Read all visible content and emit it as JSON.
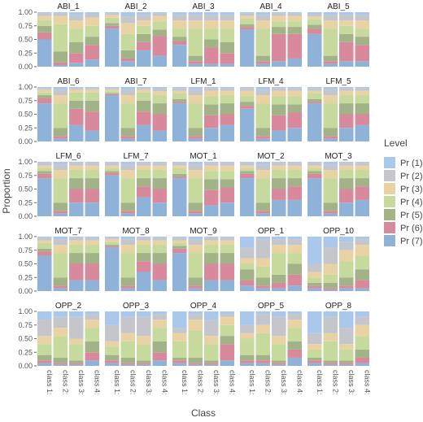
{
  "chart_data": {
    "type": "bar",
    "stacked": true,
    "x_label": "Class",
    "y_label": "Proportion",
    "legend_title": "Level",
    "categories": [
      "class 1:",
      "class 2:",
      "class 3:",
      "class 4:"
    ],
    "series": [
      {
        "name": "Pr (1)",
        "color": "#a9c8ec"
      },
      {
        "name": "Pr (2)",
        "color": "#c4c6cc"
      },
      {
        "name": "Pr (3)",
        "color": "#e9d3a4"
      },
      {
        "name": "Pr (4)",
        "color": "#c5da9c"
      },
      {
        "name": "Pr (5)",
        "color": "#a2b487"
      },
      {
        "name": "Pr (6)",
        "color": "#d9899c"
      },
      {
        "name": "Pr (7)",
        "color": "#8fb2d9"
      }
    ],
    "ylim": [
      0,
      1
    ],
    "yticks": [
      {
        "value": 0,
        "label": "0.00"
      },
      {
        "value": 0.25,
        "label": "0.25"
      },
      {
        "value": 0.5,
        "label": "0.50"
      },
      {
        "value": 0.75,
        "label": "0.75"
      },
      {
        "value": 1,
        "label": "1.00"
      }
    ],
    "panels": [
      {
        "title": "ABI_1",
        "values": [
          [
            0.02,
            0.05,
            0.08,
            0.1,
            0.12,
            0.13,
            0.5
          ],
          [
            0.02,
            0.05,
            0.15,
            0.5,
            0.2,
            0.05,
            0.03
          ],
          [
            0.05,
            0.1,
            0.15,
            0.25,
            0.2,
            0.18,
            0.07
          ],
          [
            0.03,
            0.07,
            0.15,
            0.2,
            0.15,
            0.27,
            0.13
          ]
        ]
      },
      {
        "title": "ABI_2",
        "values": [
          [
            0.02,
            0.03,
            0.05,
            0.1,
            0.05,
            0.05,
            0.7
          ],
          [
            0.08,
            0.12,
            0.2,
            0.3,
            0.15,
            0.05,
            0.1
          ],
          [
            0.05,
            0.1,
            0.1,
            0.15,
            0.15,
            0.15,
            0.3
          ],
          [
            0.02,
            0.05,
            0.1,
            0.15,
            0.12,
            0.36,
            0.2
          ]
        ]
      },
      {
        "title": "ABI_3",
        "values": [
          [
            0.05,
            0.1,
            0.15,
            0.15,
            0.08,
            0.07,
            0.4
          ],
          [
            0.05,
            0.1,
            0.15,
            0.5,
            0.1,
            0.05,
            0.05
          ],
          [
            0.05,
            0.1,
            0.15,
            0.2,
            0.15,
            0.3,
            0.05
          ],
          [
            0.05,
            0.1,
            0.15,
            0.25,
            0.2,
            0.2,
            0.05
          ]
        ]
      },
      {
        "title": "ABI_4",
        "values": [
          [
            0.02,
            0.05,
            0.05,
            0.1,
            0.05,
            0.05,
            0.68
          ],
          [
            0.05,
            0.1,
            0.15,
            0.5,
            0.1,
            0.05,
            0.05
          ],
          [
            0.02,
            0.05,
            0.1,
            0.1,
            0.13,
            0.5,
            0.1
          ],
          [
            0.02,
            0.05,
            0.1,
            0.1,
            0.13,
            0.45,
            0.15
          ]
        ]
      },
      {
        "title": "ABI_5",
        "values": [
          [
            0.03,
            0.05,
            0.05,
            0.1,
            0.07,
            0.1,
            0.6
          ],
          [
            0.05,
            0.1,
            0.15,
            0.5,
            0.1,
            0.05,
            0.05
          ],
          [
            0.05,
            0.1,
            0.1,
            0.15,
            0.15,
            0.35,
            0.1
          ],
          [
            0.05,
            0.1,
            0.15,
            0.15,
            0.15,
            0.3,
            0.1
          ]
        ]
      },
      {
        "title": "ABI_6",
        "values": [
          [
            0.02,
            0.03,
            0.05,
            0.05,
            0.05,
            0.1,
            0.7
          ],
          [
            0.05,
            0.1,
            0.15,
            0.45,
            0.15,
            0.05,
            0.05
          ],
          [
            0.02,
            0.03,
            0.05,
            0.15,
            0.15,
            0.3,
            0.3
          ],
          [
            0.02,
            0.03,
            0.05,
            0.15,
            0.2,
            0.35,
            0.2
          ]
        ]
      },
      {
        "title": "ABI_7",
        "values": [
          [
            0.02,
            0.03,
            0.03,
            0.03,
            0.02,
            0.02,
            0.85
          ],
          [
            0.05,
            0.1,
            0.15,
            0.45,
            0.15,
            0.05,
            0.05
          ],
          [
            0.02,
            0.03,
            0.05,
            0.15,
            0.2,
            0.25,
            0.3
          ],
          [
            0.03,
            0.05,
            0.07,
            0.15,
            0.2,
            0.3,
            0.2
          ]
        ]
      },
      {
        "title": "LFM_1",
        "values": [
          [
            0.02,
            0.05,
            0.05,
            0.1,
            0.05,
            0.03,
            0.7
          ],
          [
            0.05,
            0.1,
            0.15,
            0.45,
            0.15,
            0.05,
            0.05
          ],
          [
            0.02,
            0.05,
            0.1,
            0.15,
            0.2,
            0.23,
            0.25
          ],
          [
            0.02,
            0.05,
            0.08,
            0.15,
            0.2,
            0.2,
            0.3
          ]
        ]
      },
      {
        "title": "LFM_4",
        "values": [
          [
            0.02,
            0.05,
            0.1,
            0.1,
            0.08,
            0.05,
            0.6
          ],
          [
            0.05,
            0.1,
            0.15,
            0.45,
            0.15,
            0.05,
            0.05
          ],
          [
            0.02,
            0.05,
            0.1,
            0.15,
            0.2,
            0.28,
            0.2
          ],
          [
            0.02,
            0.05,
            0.1,
            0.15,
            0.15,
            0.28,
            0.25
          ]
        ]
      },
      {
        "title": "LFM_5",
        "values": [
          [
            0.02,
            0.05,
            0.05,
            0.1,
            0.05,
            0.03,
            0.7
          ],
          [
            0.05,
            0.1,
            0.15,
            0.45,
            0.15,
            0.05,
            0.05
          ],
          [
            0.02,
            0.05,
            0.08,
            0.15,
            0.2,
            0.25,
            0.25
          ],
          [
            0.02,
            0.05,
            0.08,
            0.15,
            0.2,
            0.2,
            0.3
          ]
        ]
      },
      {
        "title": "LFM_6",
        "values": [
          [
            0.02,
            0.05,
            0.05,
            0.05,
            0.05,
            0.08,
            0.7
          ],
          [
            0.05,
            0.1,
            0.15,
            0.45,
            0.15,
            0.05,
            0.05
          ],
          [
            0.02,
            0.05,
            0.08,
            0.15,
            0.2,
            0.25,
            0.25
          ],
          [
            0.02,
            0.05,
            0.08,
            0.15,
            0.2,
            0.25,
            0.25
          ]
        ]
      },
      {
        "title": "LFM_7",
        "values": [
          [
            0.02,
            0.05,
            0.05,
            0.05,
            0.03,
            0.05,
            0.75
          ],
          [
            0.05,
            0.1,
            0.15,
            0.45,
            0.15,
            0.05,
            0.05
          ],
          [
            0.02,
            0.05,
            0.08,
            0.15,
            0.15,
            0.2,
            0.35
          ],
          [
            0.02,
            0.05,
            0.08,
            0.15,
            0.2,
            0.25,
            0.25
          ]
        ]
      },
      {
        "title": "MOT_1",
        "values": [
          [
            0.02,
            0.05,
            0.05,
            0.1,
            0.05,
            0.03,
            0.7
          ],
          [
            0.05,
            0.1,
            0.15,
            0.45,
            0.15,
            0.05,
            0.05
          ],
          [
            0.02,
            0.05,
            0.1,
            0.15,
            0.2,
            0.28,
            0.2
          ],
          [
            0.02,
            0.05,
            0.1,
            0.15,
            0.15,
            0.28,
            0.25
          ]
        ]
      },
      {
        "title": "MOT_2",
        "values": [
          [
            0.02,
            0.05,
            0.05,
            0.05,
            0.05,
            0.08,
            0.7
          ],
          [
            0.05,
            0.1,
            0.15,
            0.45,
            0.15,
            0.05,
            0.05
          ],
          [
            0.02,
            0.05,
            0.08,
            0.15,
            0.2,
            0.2,
            0.3
          ],
          [
            0.02,
            0.05,
            0.08,
            0.15,
            0.15,
            0.25,
            0.3
          ]
        ]
      },
      {
        "title": "MOT_3",
        "values": [
          [
            0.02,
            0.05,
            0.05,
            0.05,
            0.05,
            0.08,
            0.7
          ],
          [
            0.05,
            0.1,
            0.15,
            0.45,
            0.15,
            0.05,
            0.05
          ],
          [
            0.02,
            0.05,
            0.08,
            0.15,
            0.2,
            0.25,
            0.25
          ],
          [
            0.02,
            0.05,
            0.08,
            0.15,
            0.15,
            0.25,
            0.3
          ]
        ]
      },
      {
        "title": "MOT_7",
        "values": [
          [
            0.02,
            0.05,
            0.05,
            0.1,
            0.05,
            0.08,
            0.65
          ],
          [
            0.05,
            0.1,
            0.15,
            0.45,
            0.15,
            0.05,
            0.05
          ],
          [
            0.02,
            0.05,
            0.08,
            0.15,
            0.2,
            0.3,
            0.2
          ],
          [
            0.02,
            0.05,
            0.08,
            0.15,
            0.2,
            0.3,
            0.2
          ]
        ]
      },
      {
        "title": "MOT_8",
        "values": [
          [
            0.02,
            0.03,
            0.05,
            0.05,
            0.03,
            0.02,
            0.8
          ],
          [
            0.05,
            0.1,
            0.15,
            0.45,
            0.15,
            0.05,
            0.05
          ],
          [
            0.02,
            0.05,
            0.08,
            0.15,
            0.15,
            0.2,
            0.35
          ],
          [
            0.02,
            0.05,
            0.08,
            0.15,
            0.2,
            0.3,
            0.2
          ]
        ]
      },
      {
        "title": "MOT_9",
        "values": [
          [
            0.02,
            0.05,
            0.05,
            0.05,
            0.05,
            0.08,
            0.7
          ],
          [
            0.05,
            0.1,
            0.15,
            0.45,
            0.15,
            0.05,
            0.05
          ],
          [
            0.02,
            0.05,
            0.08,
            0.15,
            0.2,
            0.3,
            0.2
          ],
          [
            0.02,
            0.05,
            0.08,
            0.15,
            0.2,
            0.3,
            0.2
          ]
        ]
      },
      {
        "title": "OPP_1",
        "values": [
          [
            0.2,
            0.2,
            0.1,
            0.1,
            0.2,
            0.1,
            0.1
          ],
          [
            0.05,
            0.35,
            0.15,
            0.2,
            0.15,
            0.05,
            0.05
          ],
          [
            0.05,
            0.1,
            0.15,
            0.4,
            0.15,
            0.1,
            0.05
          ],
          [
            0.05,
            0.1,
            0.15,
            0.2,
            0.2,
            0.2,
            0.1
          ]
        ]
      },
      {
        "title": "OPP_10",
        "values": [
          [
            0.5,
            0.15,
            0.1,
            0.1,
            0.05,
            0.05,
            0.05
          ],
          [
            0.2,
            0.3,
            0.2,
            0.15,
            0.1,
            0.03,
            0.02
          ],
          [
            0.1,
            0.15,
            0.2,
            0.3,
            0.15,
            0.05,
            0.05
          ],
          [
            0.05,
            0.1,
            0.2,
            0.25,
            0.2,
            0.15,
            0.05
          ]
        ]
      },
      {
        "title": "OPP_2",
        "values": [
          [
            0.15,
            0.3,
            0.15,
            0.2,
            0.1,
            0.05,
            0.05
          ],
          [
            0.1,
            0.2,
            0.15,
            0.4,
            0.1,
            0.03,
            0.02
          ],
          [
            0.1,
            0.4,
            0.1,
            0.3,
            0.05,
            0.03,
            0.02
          ],
          [
            0.05,
            0.1,
            0.15,
            0.25,
            0.2,
            0.15,
            0.1
          ]
        ]
      },
      {
        "title": "OPP_3",
        "values": [
          [
            0.25,
            0.3,
            0.1,
            0.15,
            0.1,
            0.05,
            0.05
          ],
          [
            0.1,
            0.3,
            0.15,
            0.3,
            0.1,
            0.03,
            0.02
          ],
          [
            0.1,
            0.35,
            0.15,
            0.3,
            0.05,
            0.03,
            0.02
          ],
          [
            0.05,
            0.1,
            0.15,
            0.25,
            0.2,
            0.15,
            0.1
          ]
        ]
      },
      {
        "title": "OPP_4",
        "values": [
          [
            0.3,
            0.1,
            0.15,
            0.3,
            0.05,
            0.05,
            0.05
          ],
          [
            0.05,
            0.1,
            0.2,
            0.5,
            0.1,
            0.03,
            0.02
          ],
          [
            0.15,
            0.3,
            0.15,
            0.3,
            0.05,
            0.03,
            0.02
          ],
          [
            0.05,
            0.05,
            0.15,
            0.2,
            0.15,
            0.3,
            0.1
          ]
        ]
      },
      {
        "title": "OPP_5",
        "values": [
          [
            0.25,
            0.15,
            0.1,
            0.3,
            0.1,
            0.05,
            0.05
          ],
          [
            0.05,
            0.2,
            0.15,
            0.4,
            0.1,
            0.05,
            0.05
          ],
          [
            0.1,
            0.35,
            0.15,
            0.3,
            0.05,
            0.03,
            0.02
          ],
          [
            0.05,
            0.1,
            0.15,
            0.25,
            0.15,
            0.15,
            0.15
          ]
        ]
      },
      {
        "title": "OPP_8",
        "values": [
          [
            0.4,
            0.2,
            0.1,
            0.15,
            0.05,
            0.05,
            0.05
          ],
          [
            0.1,
            0.3,
            0.15,
            0.35,
            0.05,
            0.03,
            0.02
          ],
          [
            0.3,
            0.3,
            0.1,
            0.2,
            0.05,
            0.03,
            0.02
          ],
          [
            0.1,
            0.15,
            0.2,
            0.25,
            0.15,
            0.1,
            0.05
          ]
        ]
      }
    ]
  }
}
